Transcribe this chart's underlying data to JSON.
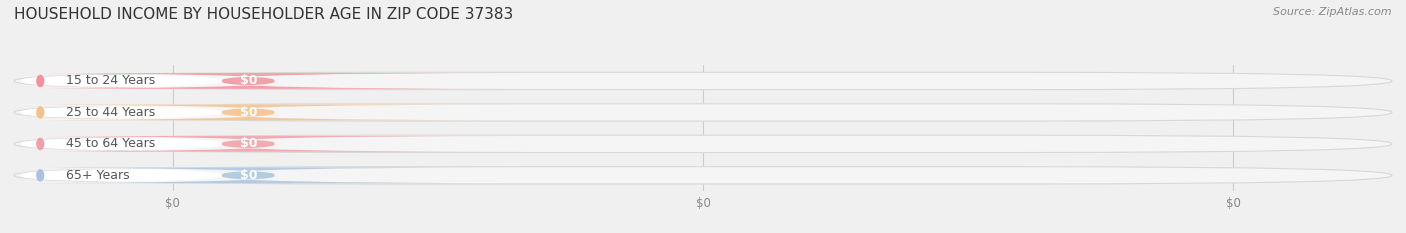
{
  "title": "HOUSEHOLD INCOME BY HOUSEHOLDER AGE IN ZIP CODE 37383",
  "source": "Source: ZipAtlas.com",
  "categories": [
    "15 to 24 Years",
    "25 to 44 Years",
    "45 to 64 Years",
    "65+ Years"
  ],
  "values": [
    0,
    0,
    0,
    0
  ],
  "bar_colors": [
    "#f4919b",
    "#f5c08a",
    "#f0a0a8",
    "#a8c4e0"
  ],
  "background_color": "#f0f0f0",
  "bar_bg_color": "#e8e8e8",
  "bar_bg_color2": "#f5f5f5",
  "title_fontsize": 11,
  "source_fontsize": 8,
  "label_fontsize": 9,
  "value_fontsize": 9,
  "xtick_positions": [
    0.115,
    0.5,
    0.885
  ],
  "xtick_labels": [
    "$0",
    "$0",
    "$0"
  ]
}
